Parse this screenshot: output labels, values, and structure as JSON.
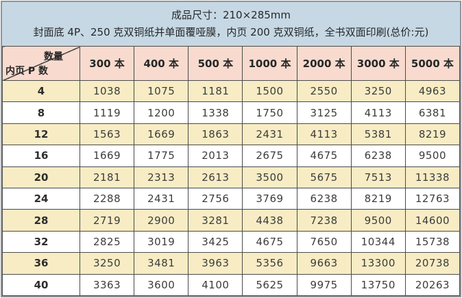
{
  "header": {
    "line1": "成品尺寸：210×285mm",
    "line2": "封面底 4P、250 克双铜纸并单面覆哑膜，内页 200 克双铜纸，全书双面印刷(总价:元)"
  },
  "table": {
    "corner": {
      "top_right": "数量",
      "bottom_left": "内页 P 数"
    },
    "columns": [
      "300 本",
      "400 本",
      "500 本",
      "1000 本",
      "2000 本",
      "3000 本",
      "5000 本"
    ],
    "rows": [
      {
        "label": "4",
        "values": [
          1038,
          1075,
          1181,
          1500,
          2550,
          3250,
          4963
        ]
      },
      {
        "label": "8",
        "values": [
          1119,
          1200,
          1338,
          1750,
          3125,
          4113,
          6381
        ]
      },
      {
        "label": "12",
        "values": [
          1563,
          1669,
          1863,
          2431,
          4113,
          5381,
          8219
        ]
      },
      {
        "label": "16",
        "values": [
          1669,
          1775,
          2013,
          2675,
          4675,
          6238,
          9500
        ]
      },
      {
        "label": "20",
        "values": [
          2181,
          2313,
          2613,
          3500,
          5675,
          7513,
          11338
        ]
      },
      {
        "label": "24",
        "values": [
          2288,
          2431,
          2756,
          3769,
          6238,
          8219,
          12763
        ]
      },
      {
        "label": "28",
        "values": [
          2719,
          2900,
          3281,
          4438,
          7238,
          9500,
          14600
        ]
      },
      {
        "label": "32",
        "values": [
          2825,
          3019,
          3425,
          4675,
          7650,
          10344,
          15738
        ]
      },
      {
        "label": "36",
        "values": [
          3250,
          3481,
          3963,
          5356,
          9663,
          13300,
          20738
        ]
      },
      {
        "label": "40",
        "values": [
          3363,
          3600,
          4100,
          5625,
          9975,
          13750,
          20263
        ]
      }
    ],
    "colors": {
      "spec_header_bg": "#c6d8e4",
      "column_header_bg": "#f8dbce",
      "alt_row_bg": "#f7ecc4",
      "row_bg": "#ffffff",
      "inner_border": "#4a4a4a",
      "outer_border": "#8e949a"
    }
  }
}
